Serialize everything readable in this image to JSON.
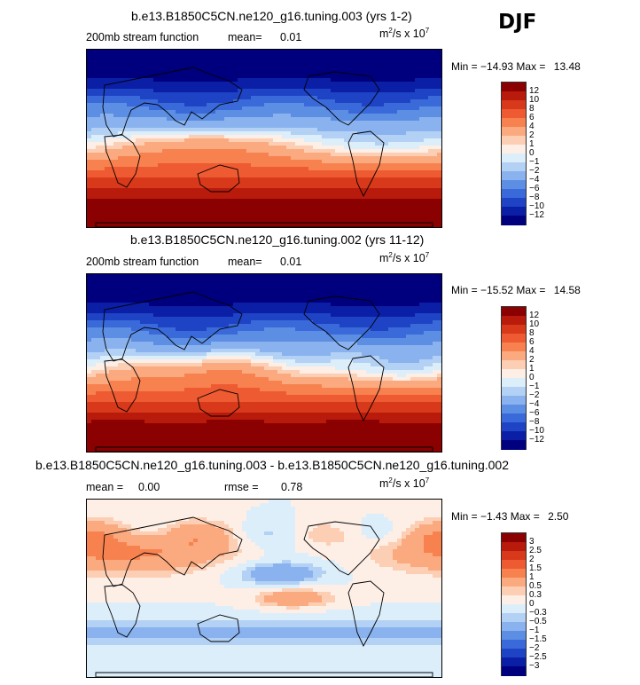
{
  "season_label": "DJF",
  "panels": [
    {
      "title": "b.e13.B1850C5CN.ne120_g16.tuning.003 (yrs 1-2)",
      "variable_label": "200mb stream function",
      "stat_left_label": "mean=",
      "stat_left_value": "0.01",
      "units_base": "m",
      "units_exp": "2",
      "units_mid": "/s x 10",
      "units_exp2": "7",
      "min_label": "Min =",
      "min_value": "−14.93",
      "max_label": "Max =",
      "max_value": "13.48",
      "colorbar_levels": [
        "12",
        "10",
        "8",
        "6",
        "4",
        "2",
        "1",
        "0",
        "−1",
        "−2",
        "−4",
        "−6",
        "−8",
        "−10",
        "−12"
      ],
      "colorbar_colors": [
        "#8b0000",
        "#b81b0c",
        "#d8391a",
        "#ee5a31",
        "#f7824f",
        "#fbaa80",
        "#fccfb4",
        "#fdeee6",
        "#ddeefb",
        "#b3d1f4",
        "#89b2ee",
        "#5c8ee3",
        "#3a6ad9",
        "#1e43c4",
        "#0a1ea6",
        "#00007e"
      ],
      "pattern": "mean"
    },
    {
      "title": "b.e13.B1850C5CN.ne120_g16.tuning.002 (yrs 11-12)",
      "variable_label": "200mb stream function",
      "stat_left_label": "mean=",
      "stat_left_value": "0.01",
      "units_base": "m",
      "units_exp": "2",
      "units_mid": "/s x 10",
      "units_exp2": "7",
      "min_label": "Min =",
      "min_value": "−15.52",
      "max_label": "Max =",
      "max_value": "14.58",
      "colorbar_levels": [
        "12",
        "10",
        "8",
        "6",
        "4",
        "2",
        "1",
        "0",
        "−1",
        "−2",
        "−4",
        "−6",
        "−8",
        "−10",
        "−12"
      ],
      "colorbar_colors": [
        "#8b0000",
        "#b81b0c",
        "#d8391a",
        "#ee5a31",
        "#f7824f",
        "#fbaa80",
        "#fccfb4",
        "#fdeee6",
        "#ddeefb",
        "#b3d1f4",
        "#89b2ee",
        "#5c8ee3",
        "#3a6ad9",
        "#1e43c4",
        "#0a1ea6",
        "#00007e"
      ],
      "pattern": "mean"
    },
    {
      "title": "b.e13.B1850C5CN.ne120_g16.tuning.003 - b.e13.B1850C5CN.ne120_g16.tuning.002",
      "variable_label": "mean =",
      "stat_left_label": "",
      "stat_left_value": "0.00",
      "rmse_label": "rmse =",
      "rmse_value": "0.78",
      "units_base": "m",
      "units_exp": "2",
      "units_mid": "/s x 10",
      "units_exp2": "7",
      "min_label": "Min =",
      "min_value": "−1.43",
      "max_label": "Max =",
      "max_value": "2.50",
      "colorbar_levels": [
        "3",
        "2.5",
        "2",
        "1.5",
        "1",
        "0.5",
        "0.3",
        "0",
        "−0.3",
        "−0.5",
        "−1",
        "−1.5",
        "−2",
        "−2.5",
        "−3"
      ],
      "colorbar_colors": [
        "#8b0000",
        "#b81b0c",
        "#d8391a",
        "#ee5a31",
        "#f7824f",
        "#fbaa80",
        "#fccfb4",
        "#fdeee6",
        "#ddeefb",
        "#b3d1f4",
        "#89b2ee",
        "#5c8ee3",
        "#3a6ad9",
        "#1e43c4",
        "#0a1ea6",
        "#00007e"
      ],
      "pattern": "diff"
    }
  ]
}
